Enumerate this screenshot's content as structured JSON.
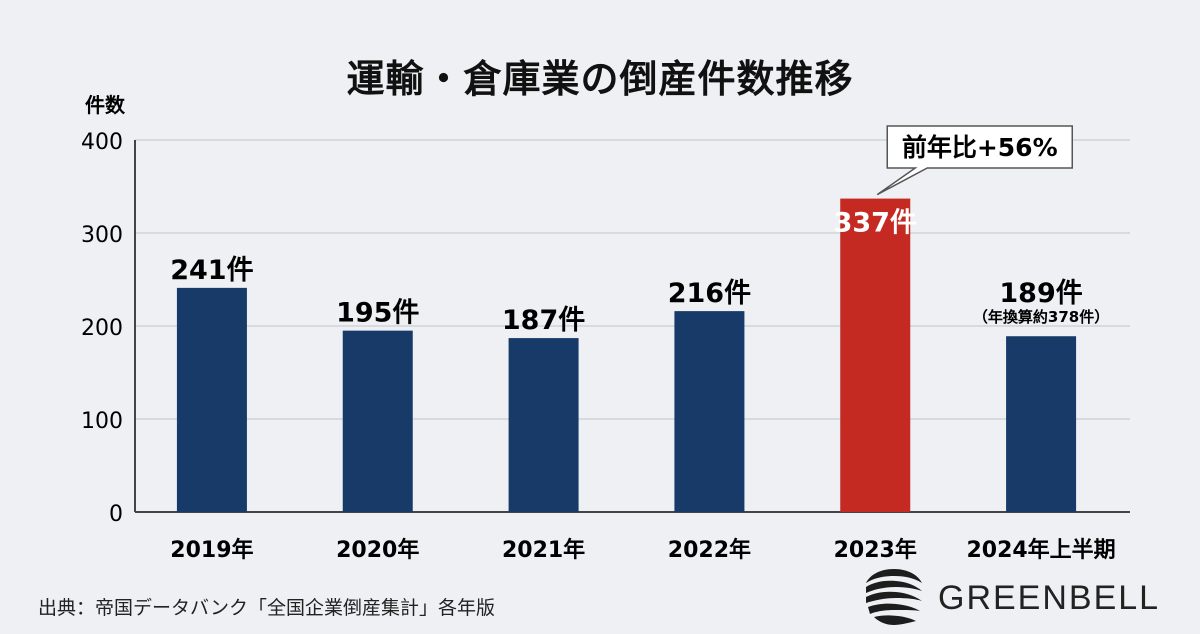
{
  "chart_data": {
    "type": "bar",
    "title": "運輸・倉庫業の倒産件数推移",
    "ylabel": "件数",
    "ylim": [
      0,
      400
    ],
    "yticks": [
      "0",
      "100",
      "200",
      "300",
      "400"
    ],
    "grid": true,
    "categories": [
      "2019年",
      "2020年",
      "2021年",
      "2022年",
      "2023年",
      "2024年上半期"
    ],
    "values": [
      241,
      195,
      187,
      216,
      337,
      189
    ],
    "value_labels": [
      "241件",
      "195件",
      "187件",
      "216件",
      "337件",
      "189件"
    ],
    "highlight_index": 4,
    "colors": {
      "bar": "#173a69",
      "highlight": "#c42a22",
      "grid": "#c9ccd2",
      "axis": "#444444"
    },
    "annotations": [
      {
        "category_index": 4,
        "text": "前年比+56%"
      },
      {
        "category_index": 5,
        "text": "（年換算約378件）"
      }
    ]
  },
  "source": "出典：帝国データバンク「全国企業倒産集計」各年版",
  "brand": {
    "name": "GREENBELL",
    "logo_icon": "greenbell-logo-icon"
  }
}
